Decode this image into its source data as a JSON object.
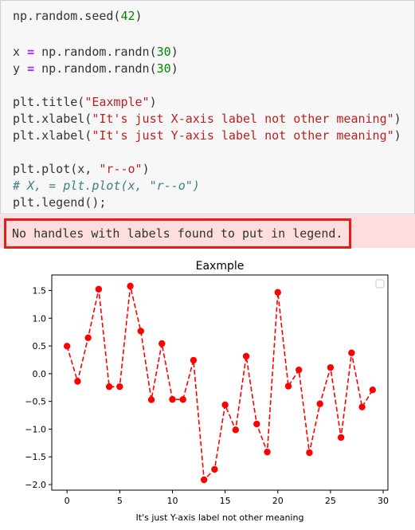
{
  "code_cell": {
    "lines": [
      [
        {
          "t": "np.random.seed(",
          "c": "plain"
        },
        {
          "t": "42",
          "c": "num"
        },
        {
          "t": ")",
          "c": "plain"
        }
      ],
      [],
      [
        {
          "t": "x ",
          "c": "plain"
        },
        {
          "t": "=",
          "c": "op"
        },
        {
          "t": " np.random.randn(",
          "c": "plain"
        },
        {
          "t": "30",
          "c": "num"
        },
        {
          "t": ")",
          "c": "plain"
        }
      ],
      [
        {
          "t": "y ",
          "c": "plain"
        },
        {
          "t": "=",
          "c": "op"
        },
        {
          "t": " np.random.randn(",
          "c": "plain"
        },
        {
          "t": "30",
          "c": "num"
        },
        {
          "t": ")",
          "c": "plain"
        }
      ],
      [],
      [
        {
          "t": "plt.title(",
          "c": "plain"
        },
        {
          "t": "\"Eaxmple\"",
          "c": "str"
        },
        {
          "t": ")",
          "c": "plain"
        }
      ],
      [
        {
          "t": "plt.xlabel(",
          "c": "plain"
        },
        {
          "t": "\"It's just X-axis label not other meaning\"",
          "c": "str"
        },
        {
          "t": ")",
          "c": "plain"
        }
      ],
      [
        {
          "t": "plt.xlabel(",
          "c": "plain"
        },
        {
          "t": "\"It's just Y-axis label not other meaning\"",
          "c": "str"
        },
        {
          "t": ")",
          "c": "plain"
        }
      ],
      [],
      [
        {
          "t": "plt.plot(x, ",
          "c": "plain"
        },
        {
          "t": "\"r--o\"",
          "c": "str"
        },
        {
          "t": ")",
          "c": "plain"
        }
      ],
      [
        {
          "t": "# X, = plt.plot(x, \"r--o\")",
          "c": "comment"
        }
      ],
      [
        {
          "t": "plt.legend();",
          "c": "plain"
        }
      ]
    ]
  },
  "stderr": {
    "message": "No handles with labels found to put in legend."
  },
  "chart_data": {
    "type": "line",
    "title": "Eaxmple",
    "xlabel": "It's just Y-axis label not other meaning",
    "ylabel": "",
    "xlim": [
      -1.45,
      30.45
    ],
    "ylim": [
      -2.1,
      1.78
    ],
    "xticks": [
      0,
      5,
      10,
      15,
      20,
      25,
      30
    ],
    "xtick_labels": [
      "0",
      "5",
      "10",
      "15",
      "20",
      "25",
      "30"
    ],
    "yticks": [
      1.5,
      1.0,
      0.5,
      0.0,
      -0.5,
      -1.0,
      -1.5,
      -2.0
    ],
    "ytick_labels": [
      "1.5",
      "1.0",
      "0.5",
      "0.0",
      "−0.5",
      "−1.0",
      "−1.5",
      "−2.0"
    ],
    "style": "r--o",
    "line_color": "#ff0000",
    "legend": "empty box at top-right",
    "grid": false,
    "series": [
      {
        "x": [
          0,
          1,
          2,
          3,
          4,
          5,
          6,
          7,
          8,
          9,
          10,
          11,
          12,
          13,
          14,
          15,
          16,
          17,
          18,
          19,
          20,
          21,
          22,
          23,
          24,
          25,
          26,
          27,
          28,
          29
        ],
        "values": [
          0.4967,
          -0.1383,
          0.6477,
          1.523,
          -0.2342,
          -0.2341,
          1.5792,
          0.7674,
          -0.4695,
          0.5426,
          -0.4634,
          -0.4657,
          0.242,
          -1.9133,
          -1.7249,
          -0.5623,
          -1.0128,
          0.3142,
          -0.908,
          -1.4123,
          1.4656,
          -0.2258,
          0.0675,
          -1.4247,
          -0.5444,
          0.1109,
          -1.151,
          0.3757,
          -0.6006,
          -0.2917
        ]
      }
    ]
  }
}
